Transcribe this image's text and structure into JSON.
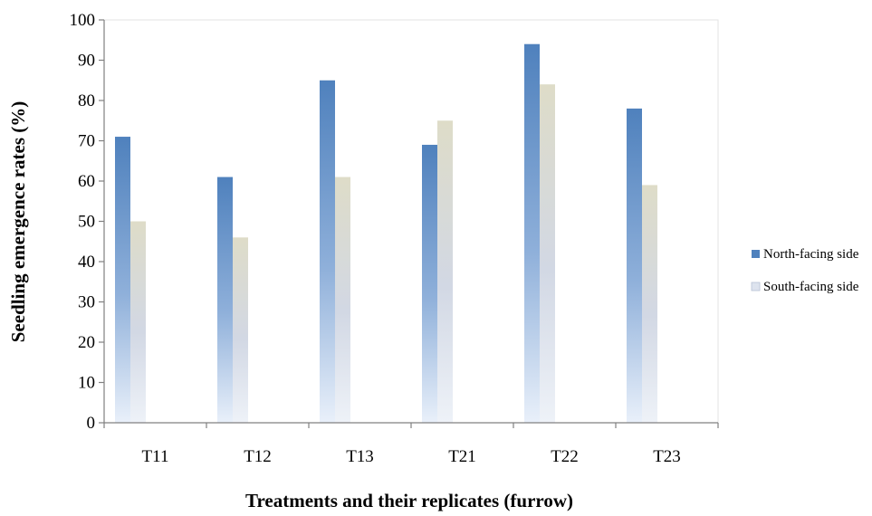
{
  "chart_data": {
    "type": "bar",
    "categories": [
      "T11",
      "T12",
      "T13",
      "T21",
      "T22",
      "T23"
    ],
    "series": [
      {
        "name": "North-facing side",
        "values": [
          71,
          61,
          85,
          69,
          94,
          78
        ],
        "color": "#4f81bd"
      },
      {
        "name": "South-facing side",
        "values": [
          50,
          46,
          61,
          75,
          84,
          59
        ],
        "color": "#dcdcc6"
      }
    ],
    "title": "",
    "xlabel": "Treatments and their replicates (furrow)",
    "ylabel": "Seedling emergence rates (%)",
    "ylim": [
      0,
      100
    ],
    "yticks": [
      0,
      10,
      20,
      30,
      40,
      50,
      60,
      70,
      80,
      90,
      100
    ],
    "grid": false,
    "legend": "right"
  }
}
